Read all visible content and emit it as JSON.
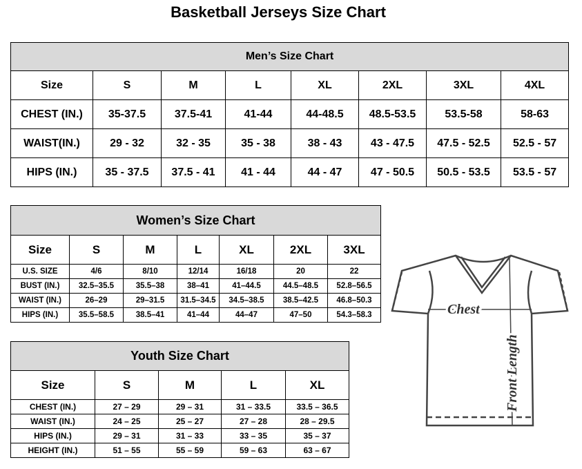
{
  "title": "Basketball Jerseys Size Chart",
  "men": {
    "title": "Men’s Size Chart",
    "header": [
      "Size",
      "S",
      "M",
      "L",
      "XL",
      "2XL",
      "3XL",
      "4XL"
    ],
    "rows": [
      [
        "CHEST (IN.)",
        "35-37.5",
        "37.5-41",
        "41-44",
        "44-48.5",
        "48.5-53.5",
        "53.5-58",
        "58-63"
      ],
      [
        "WAIST(IN.)",
        "29 - 32",
        "32 - 35",
        "35 - 38",
        "38 - 43",
        "43 - 47.5",
        "47.5 - 52.5",
        "52.5 - 57"
      ],
      [
        "HIPS (IN.)",
        "35 - 37.5",
        "37.5 - 41",
        "41 - 44",
        "44 - 47",
        "47 - 50.5",
        "50.5 - 53.5",
        "53.5 - 57"
      ]
    ]
  },
  "women": {
    "title": "Women’s Size Chart",
    "header": [
      "Size",
      "S",
      "M",
      "L",
      "XL",
      "2XL",
      "3XL"
    ],
    "rows": [
      [
        "U.S. SIZE",
        "4/6",
        "8/10",
        "12/14",
        "16/18",
        "20",
        "22"
      ],
      [
        "BUST (IN.)",
        "32.5–35.5",
        "35.5–38",
        "38–41",
        "41–44.5",
        "44.5–48.5",
        "52.8–56.5"
      ],
      [
        "WAIST (IN.)",
        "26–29",
        "29–31.5",
        "31.5–34.5",
        "34.5–38.5",
        "38.5–42.5",
        "46.8–50.3"
      ],
      [
        "HIPS (IN.)",
        "35.5–58.5",
        "38.5–41",
        "41–44",
        "44–47",
        "47–50",
        "54.3–58.3"
      ]
    ]
  },
  "youth": {
    "title": "Youth Size Chart",
    "header": [
      "Size",
      "S",
      "M",
      "L",
      "XL"
    ],
    "rows": [
      [
        "CHEST (IN.)",
        "27 – 29",
        "29 – 31",
        "31 – 33.5",
        "33.5 – 36.5"
      ],
      [
        "WAIST (IN.)",
        "24 – 25",
        "25 – 27",
        "27 – 28",
        "28 – 29.5"
      ],
      [
        "HIPS (IN.)",
        "29 – 31",
        "31 – 33",
        "33 – 35",
        "35 – 37"
      ],
      [
        "HEIGHT (IN.)",
        "51 – 55",
        "55 – 59",
        "59 – 63",
        "63 – 67"
      ]
    ]
  },
  "diagram": {
    "chest_label": "Chest",
    "length_label": "Front Length"
  }
}
